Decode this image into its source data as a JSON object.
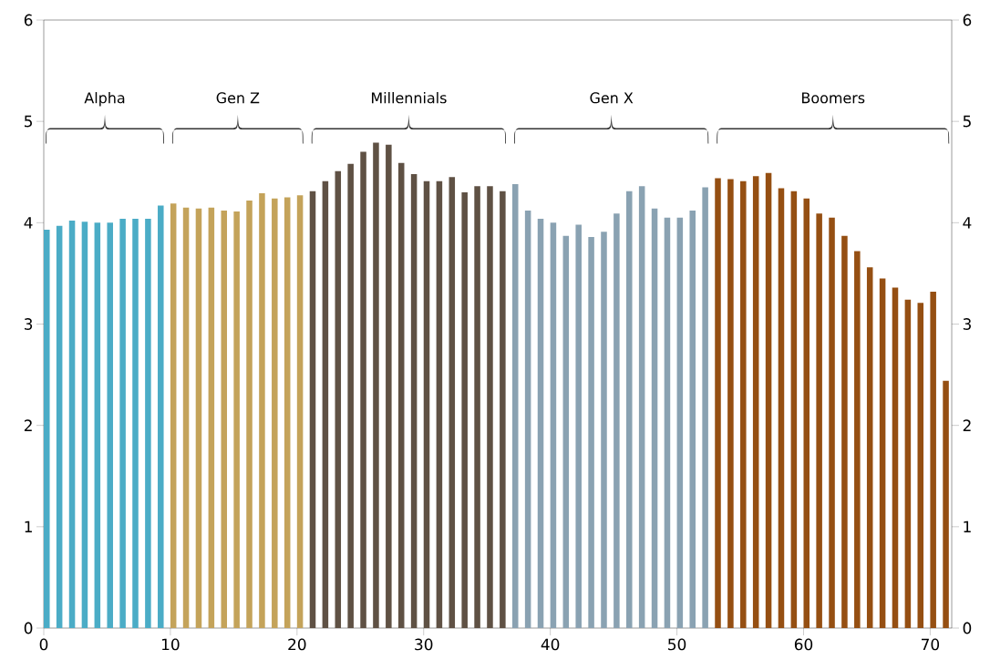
{
  "chart_data": {
    "type": "bar",
    "series": [
      {
        "color": "#4bacc6",
        "x": [
          0,
          1,
          2,
          3,
          4,
          5,
          6,
          7,
          8,
          9
        ],
        "values": [
          3.93,
          3.97,
          4.02,
          4.01,
          4.0,
          4.0,
          4.04,
          4.04,
          4.04,
          4.17
        ]
      },
      {
        "color": "#c4a35a",
        "x": [
          10,
          11,
          12,
          13,
          14,
          15,
          16,
          17,
          18,
          19,
          20
        ],
        "values": [
          4.19,
          4.15,
          4.14,
          4.15,
          4.12,
          4.11,
          4.22,
          4.29,
          4.24,
          4.25,
          4.27
        ]
      },
      {
        "color": "#5f5144",
        "x": [
          21,
          22,
          23,
          24,
          25,
          26,
          27,
          28,
          29,
          30,
          31,
          32,
          33,
          34,
          35,
          36
        ],
        "values": [
          4.31,
          4.41,
          4.51,
          4.58,
          4.7,
          4.79,
          4.77,
          4.59,
          4.48,
          4.41,
          4.41,
          4.45,
          4.3,
          4.36,
          4.36,
          4.31
        ]
      },
      {
        "color": "#8aa2b2",
        "x": [
          37,
          38,
          39,
          40,
          41,
          42,
          43,
          44,
          45,
          46,
          47,
          48,
          49,
          50,
          51,
          52
        ],
        "values": [
          4.38,
          4.12,
          4.04,
          4.0,
          3.87,
          3.98,
          3.86,
          3.91,
          4.09,
          4.31,
          4.36,
          4.14,
          4.05,
          4.05,
          4.12,
          4.35
        ]
      },
      {
        "color": "#954f12",
        "x": [
          53,
          54,
          55,
          56,
          57,
          58,
          59,
          60,
          61,
          62,
          63,
          64,
          65,
          66,
          67,
          68,
          69,
          70,
          71
        ],
        "values": [
          4.44,
          4.43,
          4.41,
          4.46,
          4.49,
          4.34,
          4.31,
          4.24,
          4.09,
          4.05,
          3.87,
          3.72,
          3.56,
          3.45,
          3.36,
          3.24,
          3.21,
          3.32,
          2.44
        ]
      }
    ],
    "annotations": [
      "Alpha",
      "Gen Z",
      "Millennials",
      "Gen X",
      "Boomers"
    ],
    "xlim": [
      0,
      71.7
    ],
    "xticks": [
      0,
      10,
      20,
      30,
      40,
      50,
      60,
      70
    ],
    "ylim": [
      0,
      6
    ],
    "yticks": [
      0,
      1,
      2,
      3,
      4,
      5,
      6
    ],
    "y2lim": [
      0,
      6
    ],
    "y2ticks": [
      0,
      1,
      2,
      3,
      4,
      5,
      6
    ]
  }
}
